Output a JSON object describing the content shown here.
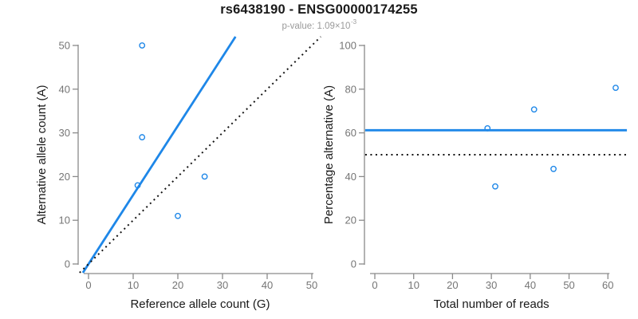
{
  "header": {
    "title": "rs6438190 - ENSG00000174255",
    "subtitle_prefix": "p-value: 1.09×10",
    "subtitle_exponent": "-3"
  },
  "colors": {
    "accent_blue": "#1E87E8",
    "dotted_black": "#141414",
    "axis_gray": "#8a8a8a",
    "tick_label_gray": "#757575",
    "axis_title_black": "#1a1a1a"
  },
  "chart_data": [
    {
      "id": "allele-counts",
      "type": "scatter",
      "xlabel": "Reference allele count (G)",
      "ylabel": "Alternative allele count (A)",
      "xlim": [
        0,
        50
      ],
      "ylim": [
        0,
        50
      ],
      "xticks": [
        0,
        10,
        20,
        30,
        40,
        50
      ],
      "yticks": [
        0,
        10,
        20,
        30,
        40,
        50
      ],
      "grid": false,
      "points": [
        [
          12,
          50
        ],
        [
          12,
          29
        ],
        [
          11,
          18
        ],
        [
          20,
          11
        ],
        [
          26,
          20
        ]
      ],
      "ablines": [
        {
          "slope": 1.58,
          "intercept": 0,
          "style": "solid",
          "color": "accent"
        },
        {
          "slope": 1,
          "intercept": 0,
          "style": "dotted",
          "color": "black"
        }
      ]
    },
    {
      "id": "percentage-alternative",
      "type": "scatter",
      "xlabel": "Total number of reads",
      "ylabel": "Percentage alternative (A)",
      "xlim": [
        0,
        62
      ],
      "ylim": [
        0,
        100
      ],
      "xticks": [
        0,
        10,
        20,
        30,
        40,
        50,
        60
      ],
      "yticks": [
        0,
        20,
        40,
        60,
        80,
        100
      ],
      "grid": false,
      "points": [
        [
          29,
          62.1
        ],
        [
          31,
          35.5
        ],
        [
          41,
          70.7
        ],
        [
          46,
          43.5
        ],
        [
          62,
          80.6
        ]
      ],
      "hlines": [
        {
          "y": 61.2,
          "style": "solid",
          "color": "accent"
        },
        {
          "y": 50,
          "style": "dotted",
          "color": "black"
        }
      ]
    }
  ]
}
